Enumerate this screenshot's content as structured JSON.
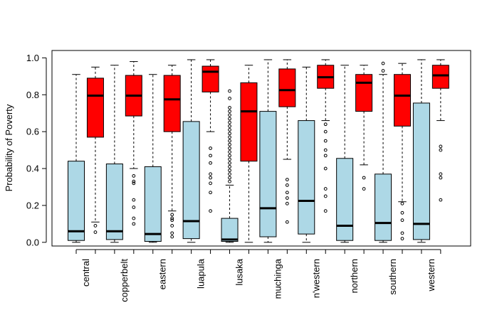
{
  "chart_data": {
    "type": "boxplot",
    "title": "",
    "xlabel": "",
    "ylabel": "Probability of Poverty",
    "ylim": [
      -0.02,
      1.04
    ],
    "yticks": [
      0.0,
      0.2,
      0.4,
      0.6,
      0.8,
      1.0
    ],
    "ytick_labels": [
      "0.0",
      "0.2",
      "0.4",
      "0.6",
      "0.8",
      "1.0"
    ],
    "categories": [
      "central",
      "copperbelt",
      "eastern",
      "luapula",
      "lusaka",
      "muchinga",
      "n'western",
      "northern",
      "southern",
      "western"
    ],
    "series_colors": {
      "light": "#add8e6",
      "dark": "#ff0000"
    },
    "groups": [
      {
        "label": "central",
        "light": {
          "min": 0.0,
          "q1": 0.01,
          "median": 0.06,
          "q3": 0.44,
          "max": 0.91,
          "outliers": []
        },
        "dark": {
          "min": 0.11,
          "q1": 0.57,
          "median": 0.795,
          "q3": 0.89,
          "max": 0.95,
          "outliers": [
            0.09,
            0.055
          ]
        }
      },
      {
        "label": "copperbelt",
        "light": {
          "min": 0.0,
          "q1": 0.015,
          "median": 0.06,
          "q3": 0.425,
          "max": 0.96,
          "outliers": []
        },
        "dark": {
          "min": 0.4,
          "q1": 0.685,
          "median": 0.795,
          "q3": 0.905,
          "max": 0.98,
          "outliers": [
            0.36,
            0.33,
            0.32,
            0.23,
            0.19,
            0.13,
            0.1
          ]
        }
      },
      {
        "label": "eastern",
        "light": {
          "min": 0.0,
          "q1": 0.005,
          "median": 0.045,
          "q3": 0.41,
          "max": 0.91,
          "outliers": []
        },
        "dark": {
          "min": 0.17,
          "q1": 0.6,
          "median": 0.775,
          "q3": 0.905,
          "max": 0.96,
          "outliers": [
            0.15,
            0.13,
            0.12,
            0.09,
            0.05,
            0.03
          ]
        }
      },
      {
        "label": "luapula",
        "light": {
          "min": 0.0,
          "q1": 0.02,
          "median": 0.115,
          "q3": 0.655,
          "max": 0.99,
          "outliers": []
        },
        "dark": {
          "min": 0.6,
          "q1": 0.815,
          "median": 0.925,
          "q3": 0.955,
          "max": 0.99,
          "outliers": [
            0.51,
            0.47,
            0.43,
            0.37,
            0.35,
            0.32,
            0.27,
            0.17
          ]
        }
      },
      {
        "label": "lusaka",
        "light": {
          "min": 0.0,
          "q1": 0.005,
          "median": 0.015,
          "q3": 0.13,
          "max": 0.31,
          "outliers": [
            0.33,
            0.35,
            0.37,
            0.39,
            0.41,
            0.43,
            0.45,
            0.47,
            0.49,
            0.51,
            0.53,
            0.55,
            0.57,
            0.59,
            0.61,
            0.63,
            0.65,
            0.67,
            0.69,
            0.71,
            0.73,
            0.78,
            0.82
          ]
        },
        "dark": {
          "min": 0.0,
          "q1": 0.44,
          "median": 0.71,
          "q3": 0.865,
          "max": 0.96,
          "outliers": []
        }
      },
      {
        "label": "muchinga",
        "light": {
          "min": 0.0,
          "q1": 0.03,
          "median": 0.185,
          "q3": 0.71,
          "max": 0.99,
          "outliers": []
        },
        "dark": {
          "min": 0.45,
          "q1": 0.735,
          "median": 0.825,
          "q3": 0.94,
          "max": 0.99,
          "outliers": [
            0.34,
            0.31,
            0.27,
            0.24,
            0.21,
            0.11
          ]
        }
      },
      {
        "label": "n'western",
        "light": {
          "min": 0.0,
          "q1": 0.045,
          "median": 0.225,
          "q3": 0.66,
          "max": 0.95,
          "outliers": []
        },
        "dark": {
          "min": 0.66,
          "q1": 0.835,
          "median": 0.895,
          "q3": 0.96,
          "max": 0.99,
          "outliers": [
            0.64,
            0.6,
            0.55,
            0.5,
            0.47,
            0.4,
            0.29,
            0.25,
            0.17
          ]
        }
      },
      {
        "label": "northern",
        "light": {
          "min": 0.0,
          "q1": 0.01,
          "median": 0.09,
          "q3": 0.455,
          "max": 0.96,
          "outliers": []
        },
        "dark": {
          "min": 0.42,
          "q1": 0.71,
          "median": 0.865,
          "q3": 0.91,
          "max": 0.96,
          "outliers": [
            0.35,
            0.29
          ]
        }
      },
      {
        "label": "southern",
        "light": {
          "min": 0.0,
          "q1": 0.01,
          "median": 0.105,
          "q3": 0.37,
          "max": 0.91,
          "outliers": [
            0.93,
            0.97
          ]
        },
        "dark": {
          "min": 0.22,
          "q1": 0.63,
          "median": 0.795,
          "q3": 0.91,
          "max": 0.97,
          "outliers": [
            0.21,
            0.16,
            0.12,
            0.05,
            0.02
          ]
        }
      },
      {
        "label": "western",
        "light": {
          "min": 0.0,
          "q1": 0.015,
          "median": 0.1,
          "q3": 0.755,
          "max": 0.99,
          "outliers": []
        },
        "dark": {
          "min": 0.66,
          "q1": 0.835,
          "median": 0.905,
          "q3": 0.96,
          "max": 0.99,
          "outliers": [
            0.52,
            0.5,
            0.37,
            0.35,
            0.23
          ]
        }
      }
    ]
  }
}
